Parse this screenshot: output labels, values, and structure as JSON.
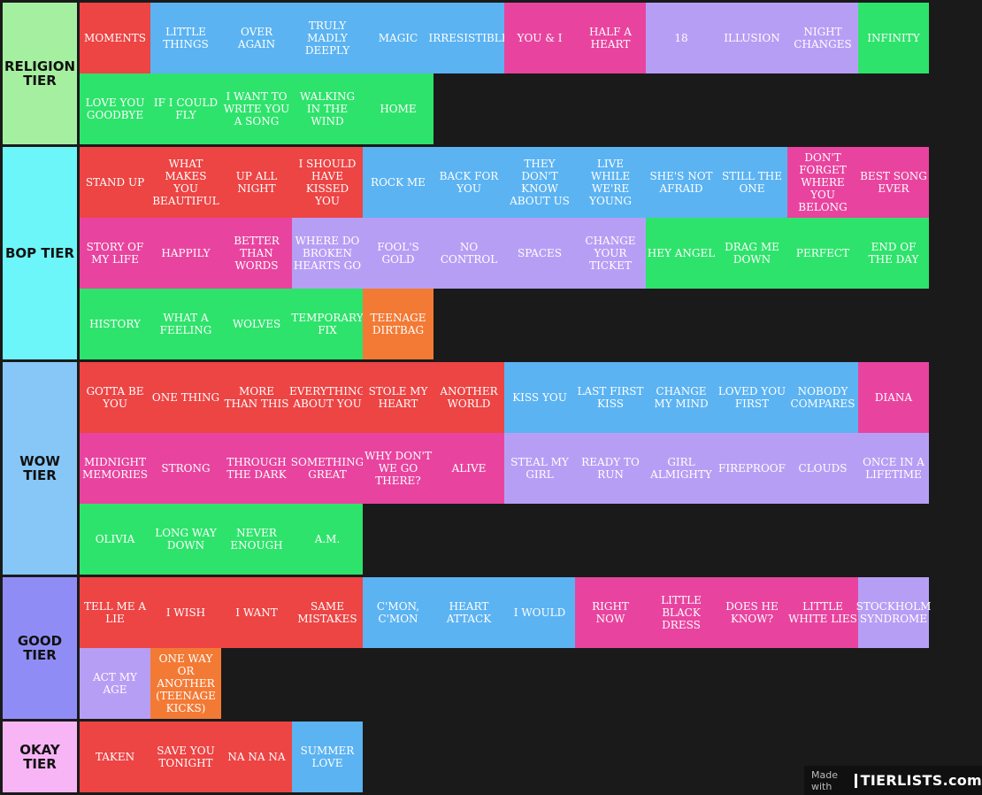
{
  "tiers": [
    {
      "label": "RELIGION TIER",
      "color": "#a5f0a0",
      "items": [
        {
          "text": "MOMENTS",
          "color": "#ed4444"
        },
        {
          "text": "LITTLE THINGS",
          "color": "#5bb3f2"
        },
        {
          "text": "OVER AGAIN",
          "color": "#5bb3f2"
        },
        {
          "text": "TRULY MADLY DEEPLY",
          "color": "#5bb3f2"
        },
        {
          "text": "MAGIC",
          "color": "#5bb3f2"
        },
        {
          "text": "IRRESISTIBLE",
          "color": "#5bb3f2"
        },
        {
          "text": "YOU & I",
          "color": "#e8449f"
        },
        {
          "text": "HALF A HEART",
          "color": "#e8449f"
        },
        {
          "text": "18",
          "color": "#b79ef5"
        },
        {
          "text": "ILLUSION",
          "color": "#b79ef5"
        },
        {
          "text": "NIGHT CHANGES",
          "color": "#b79ef5"
        },
        {
          "text": "INFINITY",
          "color": "#2ee36b"
        },
        {
          "text": "LOVE YOU GOODBYE",
          "color": "#2ee36b"
        },
        {
          "text": "IF I COULD FLY",
          "color": "#2ee36b"
        },
        {
          "text": "I WANT TO WRITE YOU A SONG",
          "color": "#2ee36b"
        },
        {
          "text": "WALKING IN THE WIND",
          "color": "#2ee36b"
        },
        {
          "text": "HOME",
          "color": "#2ee36b"
        }
      ]
    },
    {
      "label": "BOP TIER",
      "color": "#6cf6f9",
      "items": [
        {
          "text": "STAND UP",
          "color": "#ed4444"
        },
        {
          "text": "WHAT MAKES YOU BEAUTIFUL",
          "color": "#ed4444"
        },
        {
          "text": "UP ALL NIGHT",
          "color": "#ed4444"
        },
        {
          "text": "I SHOULD HAVE KISSED YOU",
          "color": "#ed4444"
        },
        {
          "text": "ROCK ME",
          "color": "#5bb3f2"
        },
        {
          "text": "BACK FOR YOU",
          "color": "#5bb3f2"
        },
        {
          "text": "THEY DON'T KNOW ABOUT US",
          "color": "#5bb3f2"
        },
        {
          "text": "LIVE WHILE WE'RE YOUNG",
          "color": "#5bb3f2"
        },
        {
          "text": "SHE'S NOT AFRAID",
          "color": "#5bb3f2"
        },
        {
          "text": "STILL THE ONE",
          "color": "#5bb3f2"
        },
        {
          "text": "DON'T FORGET WHERE YOU BELONG",
          "color": "#e8449f"
        },
        {
          "text": "BEST SONG EVER",
          "color": "#e8449f"
        },
        {
          "text": "STORY OF MY LIFE",
          "color": "#e8449f"
        },
        {
          "text": "HAPPILY",
          "color": "#e8449f"
        },
        {
          "text": "BETTER THAN WORDS",
          "color": "#e8449f"
        },
        {
          "text": "WHERE DO BROKEN HEARTS GO",
          "color": "#b79ef5"
        },
        {
          "text": "FOOL'S GOLD",
          "color": "#b79ef5"
        },
        {
          "text": "NO CONTROL",
          "color": "#b79ef5"
        },
        {
          "text": "SPACES",
          "color": "#b79ef5"
        },
        {
          "text": "CHANGE YOUR TICKET",
          "color": "#b79ef5"
        },
        {
          "text": "HEY ANGEL",
          "color": "#2ee36b"
        },
        {
          "text": "DRAG ME DOWN",
          "color": "#2ee36b"
        },
        {
          "text": "PERFECT",
          "color": "#2ee36b"
        },
        {
          "text": "END OF THE DAY",
          "color": "#2ee36b"
        },
        {
          "text": "HISTORY",
          "color": "#2ee36b"
        },
        {
          "text": "WHAT A FEELING",
          "color": "#2ee36b"
        },
        {
          "text": "WOLVES",
          "color": "#2ee36b"
        },
        {
          "text": "TEMPORARY FIX",
          "color": "#2ee36b"
        },
        {
          "text": "TEENAGE DIRTBAG",
          "color": "#f37a35"
        }
      ]
    },
    {
      "label": "WOW TIER",
      "color": "#86c7f7",
      "items": [
        {
          "text": "GOTTA BE YOU",
          "color": "#ed4444"
        },
        {
          "text": "ONE THING",
          "color": "#ed4444"
        },
        {
          "text": "MORE THAN THIS",
          "color": "#ed4444"
        },
        {
          "text": "EVERYTHING ABOUT YOU",
          "color": "#ed4444"
        },
        {
          "text": "STOLE MY HEART",
          "color": "#ed4444"
        },
        {
          "text": "ANOTHER WORLD",
          "color": "#ed4444"
        },
        {
          "text": "KISS YOU",
          "color": "#5bb3f2"
        },
        {
          "text": "LAST FIRST KISS",
          "color": "#5bb3f2"
        },
        {
          "text": "CHANGE MY MIND",
          "color": "#5bb3f2"
        },
        {
          "text": "LOVED YOU FIRST",
          "color": "#5bb3f2"
        },
        {
          "text": "NOBODY COMPARES",
          "color": "#5bb3f2"
        },
        {
          "text": "DIANA",
          "color": "#e8449f"
        },
        {
          "text": "MIDNIGHT MEMORIES",
          "color": "#e8449f"
        },
        {
          "text": "STRONG",
          "color": "#e8449f"
        },
        {
          "text": "THROUGH THE DARK",
          "color": "#e8449f"
        },
        {
          "text": "SOMETHING GREAT",
          "color": "#e8449f"
        },
        {
          "text": "WHY DON'T WE GO THERE?",
          "color": "#e8449f"
        },
        {
          "text": "ALIVE",
          "color": "#e8449f"
        },
        {
          "text": "STEAL MY GIRL",
          "color": "#b79ef5"
        },
        {
          "text": "READY TO RUN",
          "color": "#b79ef5"
        },
        {
          "text": "GIRL ALMIGHTY",
          "color": "#b79ef5"
        },
        {
          "text": "FIREPROOF",
          "color": "#b79ef5"
        },
        {
          "text": "CLOUDS",
          "color": "#b79ef5"
        },
        {
          "text": "ONCE IN A LIFETIME",
          "color": "#b79ef5"
        },
        {
          "text": "OLIVIA",
          "color": "#2ee36b"
        },
        {
          "text": "LONG WAY DOWN",
          "color": "#2ee36b"
        },
        {
          "text": "NEVER ENOUGH",
          "color": "#2ee36b"
        },
        {
          "text": "A.M.",
          "color": "#2ee36b"
        }
      ]
    },
    {
      "label": "GOOD TIER",
      "color": "#8f8df5",
      "items": [
        {
          "text": "TELL ME A LIE",
          "color": "#ed4444"
        },
        {
          "text": "I WISH",
          "color": "#ed4444"
        },
        {
          "text": "I WANT",
          "color": "#ed4444"
        },
        {
          "text": "SAME MISTAKES",
          "color": "#ed4444"
        },
        {
          "text": "C'MON, C'MON",
          "color": "#5bb3f2"
        },
        {
          "text": "HEART ATTACK",
          "color": "#5bb3f2"
        },
        {
          "text": "I WOULD",
          "color": "#5bb3f2"
        },
        {
          "text": "RIGHT NOW",
          "color": "#e8449f"
        },
        {
          "text": "LITTLE BLACK DRESS",
          "color": "#e8449f"
        },
        {
          "text": "DOES HE KNOW?",
          "color": "#e8449f"
        },
        {
          "text": "LITTLE WHITE LIES",
          "color": "#e8449f"
        },
        {
          "text": "STOCKHOLM SYNDROME",
          "color": "#b79ef5"
        },
        {
          "text": "ACT MY AGE",
          "color": "#b79ef5"
        },
        {
          "text": "ONE WAY OR ANOTHER (TEENAGE KICKS)",
          "color": "#f37a35"
        }
      ]
    },
    {
      "label": "OKAY TIER",
      "color": "#f7b5f5",
      "items": [
        {
          "text": "TAKEN",
          "color": "#ed4444"
        },
        {
          "text": "SAVE YOU TONIGHT",
          "color": "#ed4444"
        },
        {
          "text": "NA NA NA",
          "color": "#ed4444"
        },
        {
          "text": "SUMMER LOVE",
          "color": "#5bb3f2"
        }
      ]
    }
  ],
  "watermark": {
    "made_with": "Made with",
    "brand": "TIERLISTS.com"
  }
}
